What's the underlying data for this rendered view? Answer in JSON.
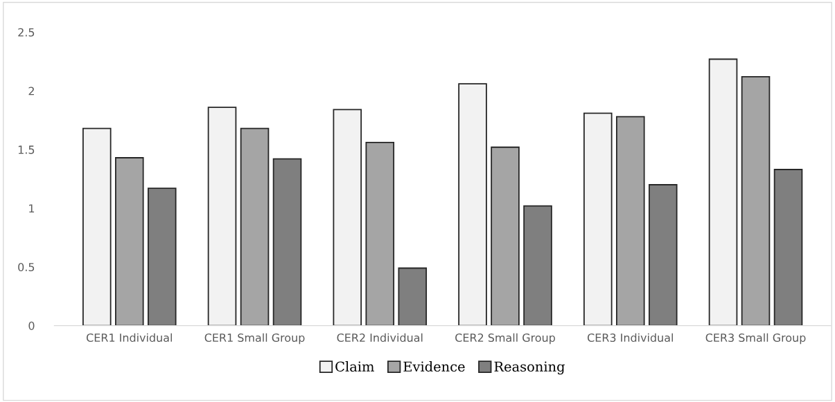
{
  "chart_data": {
    "type": "bar",
    "categories": [
      "CER1 Individual",
      "CER1 Small Group",
      "CER2 Individual",
      "CER2 Small Group",
      "CER3 Individual",
      "CER3 Small Group"
    ],
    "series": [
      {
        "name": "Claim",
        "color": "#f2f2f2",
        "values": [
          1.68,
          1.86,
          1.84,
          2.06,
          1.81,
          2.27
        ]
      },
      {
        "name": "Evidence",
        "color": "#a5a5a5",
        "values": [
          1.43,
          1.68,
          1.56,
          1.52,
          1.78,
          2.12
        ]
      },
      {
        "name": "Reasoning",
        "color": "#7f7f7f",
        "values": [
          1.17,
          1.42,
          0.49,
          1.02,
          1.2,
          1.33
        ]
      }
    ],
    "ylim": [
      0,
      2.5
    ],
    "yticks": [
      0,
      0.5,
      1,
      1.5,
      2,
      2.5
    ],
    "grid": false,
    "legend": "bottom"
  }
}
